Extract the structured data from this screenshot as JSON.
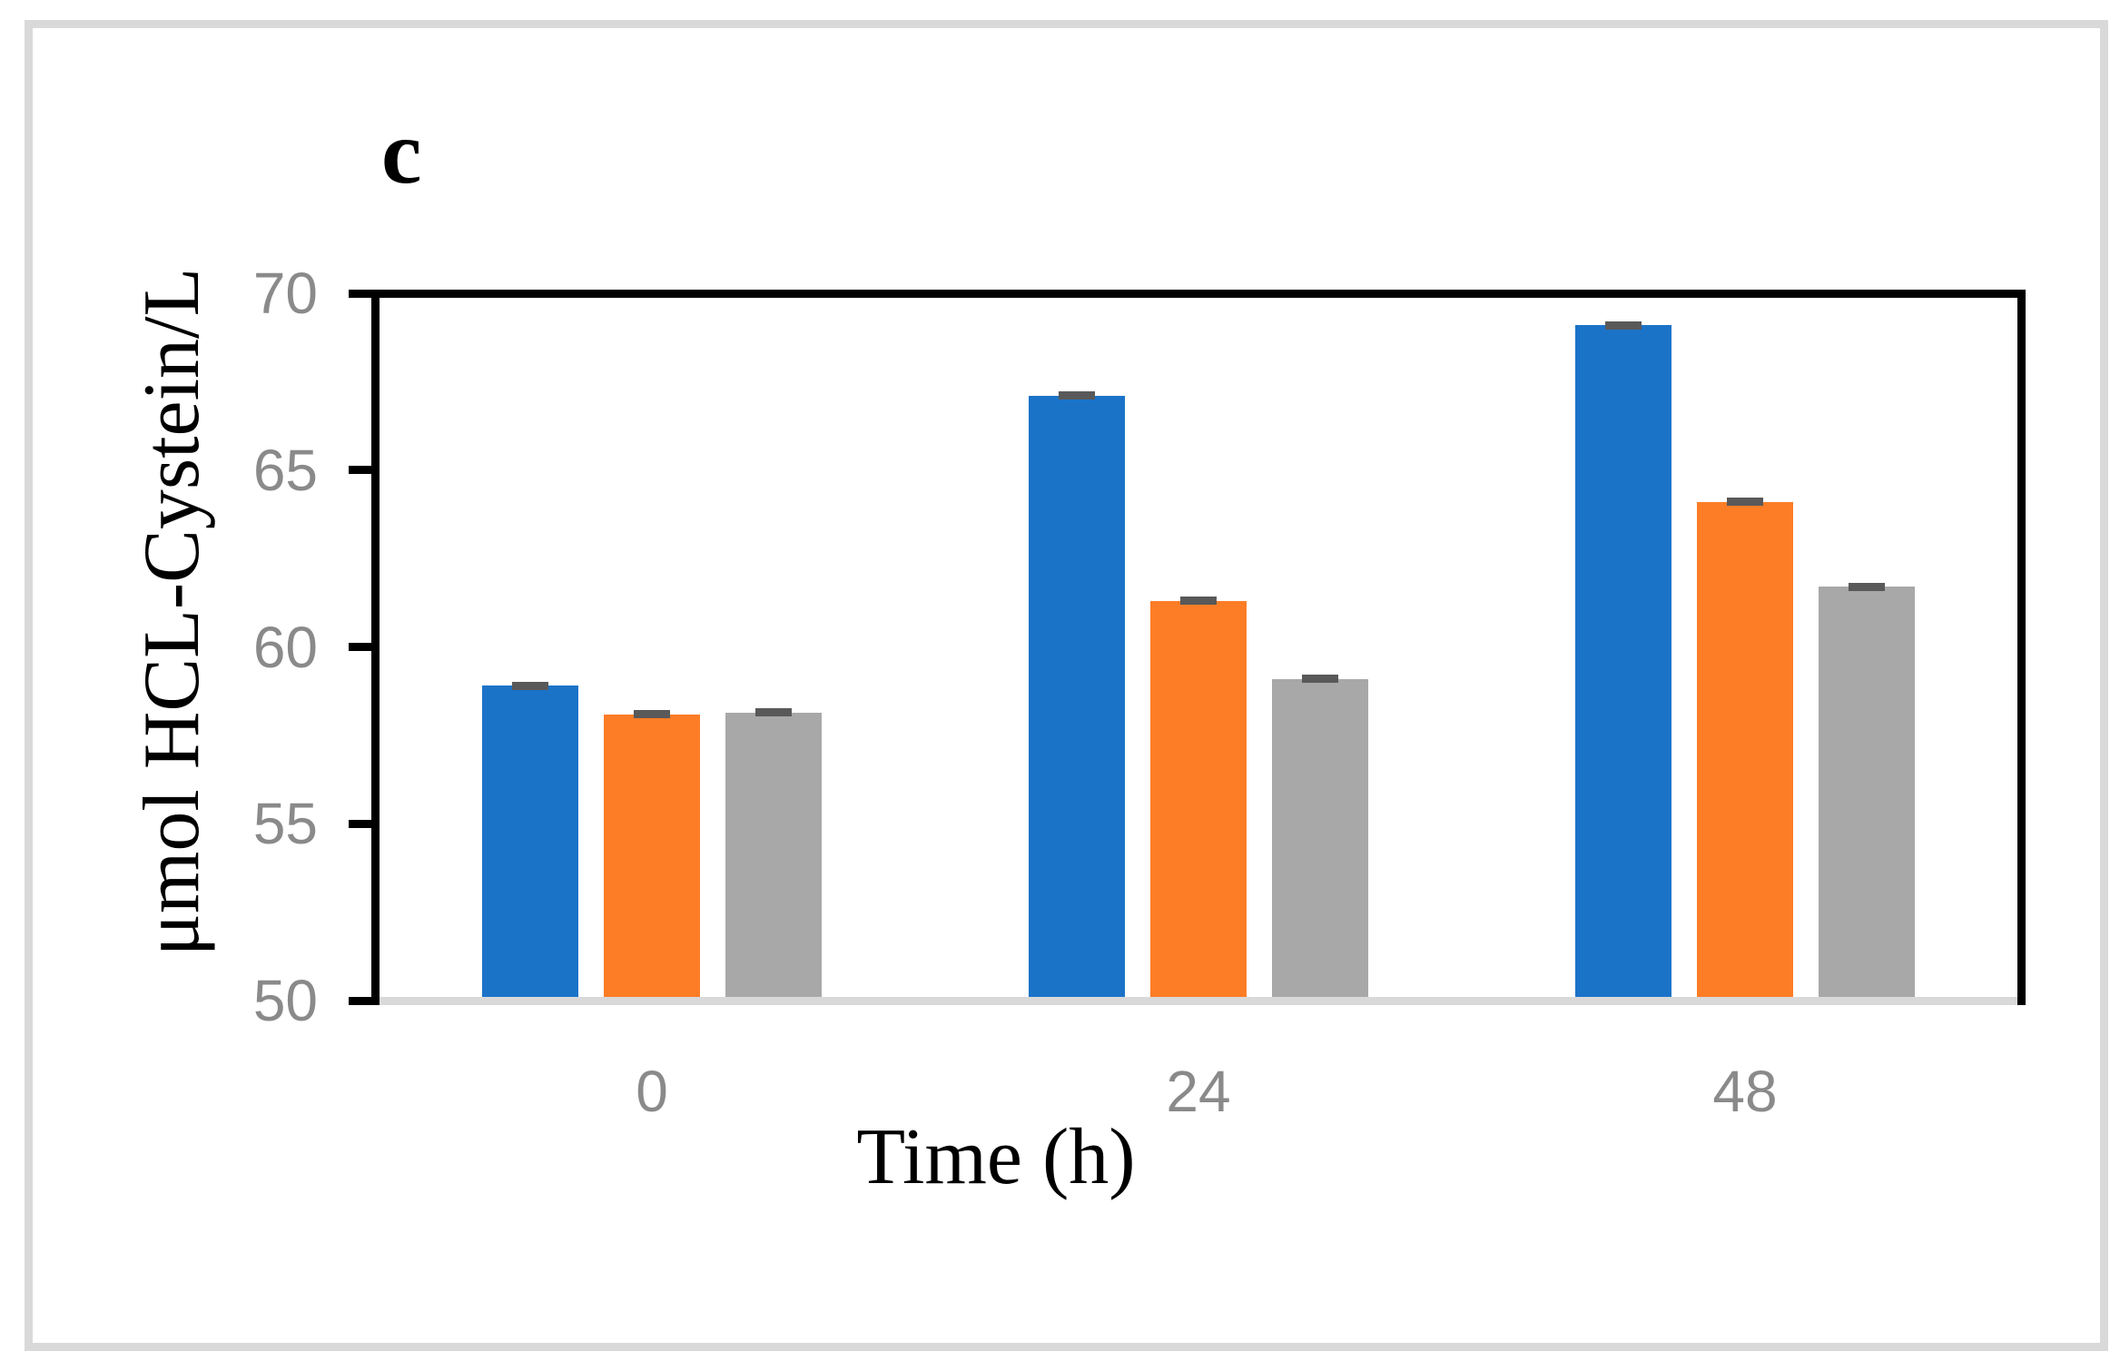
{
  "chart_data": {
    "type": "bar",
    "panel_label": "c",
    "title": "",
    "xlabel": "Time (h)",
    "ylabel": "μmol HCL-Cystein/L",
    "categories": [
      "0",
      "24",
      "48"
    ],
    "series": [
      {
        "name": "blue",
        "color": "#1b73c8",
        "values": [
          58.9,
          67.1,
          69.1
        ],
        "errors": [
          0.1,
          0.1,
          0.1
        ]
      },
      {
        "name": "orange",
        "color": "#fc7d26",
        "values": [
          58.1,
          61.3,
          64.1
        ],
        "errors": [
          0.1,
          0.1,
          0.1
        ]
      },
      {
        "name": "gray",
        "color": "#a8a8a8",
        "values": [
          58.15,
          59.1,
          61.7
        ],
        "errors": [
          0.1,
          0.1,
          0.1
        ]
      }
    ],
    "ylim": [
      50,
      70
    ],
    "yticks": [
      50,
      55,
      60,
      65,
      70
    ],
    "grid": "off",
    "legend": "none",
    "error_bar_color": "#595959",
    "axis_color": "#000000",
    "baseline_color": "#d9d9d9",
    "tick_label_color": "#8a8a8a",
    "frame_color": "#d9d9d9"
  }
}
